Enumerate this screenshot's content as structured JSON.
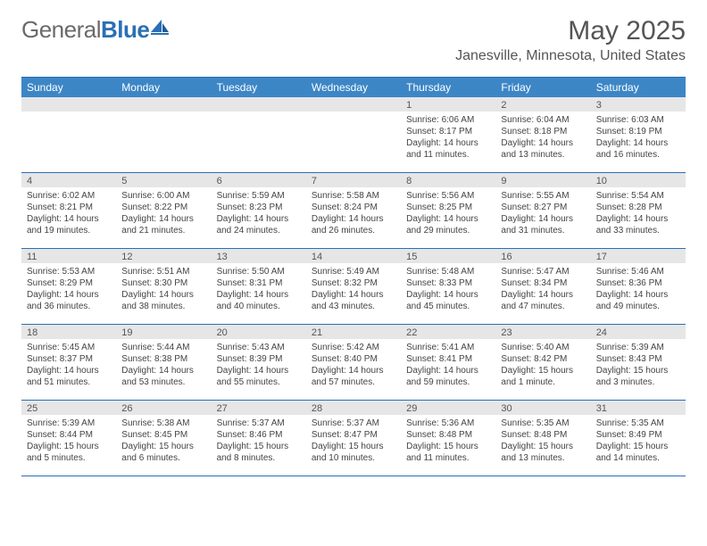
{
  "logo": {
    "general": "General",
    "blue": "Blue"
  },
  "title": "May 2025",
  "location": "Janesville, Minnesota, United States",
  "colors": {
    "header_bg": "#3d86c6",
    "border": "#2a6fb5",
    "daynum_bg": "#e6e6e6",
    "text": "#444444"
  },
  "days_of_week": [
    "Sunday",
    "Monday",
    "Tuesday",
    "Wednesday",
    "Thursday",
    "Friday",
    "Saturday"
  ],
  "weeks": [
    [
      {
        "n": "",
        "sr": "",
        "ss": "",
        "dl": ""
      },
      {
        "n": "",
        "sr": "",
        "ss": "",
        "dl": ""
      },
      {
        "n": "",
        "sr": "",
        "ss": "",
        "dl": ""
      },
      {
        "n": "",
        "sr": "",
        "ss": "",
        "dl": ""
      },
      {
        "n": "1",
        "sr": "Sunrise: 6:06 AM",
        "ss": "Sunset: 8:17 PM",
        "dl": "Daylight: 14 hours and 11 minutes."
      },
      {
        "n": "2",
        "sr": "Sunrise: 6:04 AM",
        "ss": "Sunset: 8:18 PM",
        "dl": "Daylight: 14 hours and 13 minutes."
      },
      {
        "n": "3",
        "sr": "Sunrise: 6:03 AM",
        "ss": "Sunset: 8:19 PM",
        "dl": "Daylight: 14 hours and 16 minutes."
      }
    ],
    [
      {
        "n": "4",
        "sr": "Sunrise: 6:02 AM",
        "ss": "Sunset: 8:21 PM",
        "dl": "Daylight: 14 hours and 19 minutes."
      },
      {
        "n": "5",
        "sr": "Sunrise: 6:00 AM",
        "ss": "Sunset: 8:22 PM",
        "dl": "Daylight: 14 hours and 21 minutes."
      },
      {
        "n": "6",
        "sr": "Sunrise: 5:59 AM",
        "ss": "Sunset: 8:23 PM",
        "dl": "Daylight: 14 hours and 24 minutes."
      },
      {
        "n": "7",
        "sr": "Sunrise: 5:58 AM",
        "ss": "Sunset: 8:24 PM",
        "dl": "Daylight: 14 hours and 26 minutes."
      },
      {
        "n": "8",
        "sr": "Sunrise: 5:56 AM",
        "ss": "Sunset: 8:25 PM",
        "dl": "Daylight: 14 hours and 29 minutes."
      },
      {
        "n": "9",
        "sr": "Sunrise: 5:55 AM",
        "ss": "Sunset: 8:27 PM",
        "dl": "Daylight: 14 hours and 31 minutes."
      },
      {
        "n": "10",
        "sr": "Sunrise: 5:54 AM",
        "ss": "Sunset: 8:28 PM",
        "dl": "Daylight: 14 hours and 33 minutes."
      }
    ],
    [
      {
        "n": "11",
        "sr": "Sunrise: 5:53 AM",
        "ss": "Sunset: 8:29 PM",
        "dl": "Daylight: 14 hours and 36 minutes."
      },
      {
        "n": "12",
        "sr": "Sunrise: 5:51 AM",
        "ss": "Sunset: 8:30 PM",
        "dl": "Daylight: 14 hours and 38 minutes."
      },
      {
        "n": "13",
        "sr": "Sunrise: 5:50 AM",
        "ss": "Sunset: 8:31 PM",
        "dl": "Daylight: 14 hours and 40 minutes."
      },
      {
        "n": "14",
        "sr": "Sunrise: 5:49 AM",
        "ss": "Sunset: 8:32 PM",
        "dl": "Daylight: 14 hours and 43 minutes."
      },
      {
        "n": "15",
        "sr": "Sunrise: 5:48 AM",
        "ss": "Sunset: 8:33 PM",
        "dl": "Daylight: 14 hours and 45 minutes."
      },
      {
        "n": "16",
        "sr": "Sunrise: 5:47 AM",
        "ss": "Sunset: 8:34 PM",
        "dl": "Daylight: 14 hours and 47 minutes."
      },
      {
        "n": "17",
        "sr": "Sunrise: 5:46 AM",
        "ss": "Sunset: 8:36 PM",
        "dl": "Daylight: 14 hours and 49 minutes."
      }
    ],
    [
      {
        "n": "18",
        "sr": "Sunrise: 5:45 AM",
        "ss": "Sunset: 8:37 PM",
        "dl": "Daylight: 14 hours and 51 minutes."
      },
      {
        "n": "19",
        "sr": "Sunrise: 5:44 AM",
        "ss": "Sunset: 8:38 PM",
        "dl": "Daylight: 14 hours and 53 minutes."
      },
      {
        "n": "20",
        "sr": "Sunrise: 5:43 AM",
        "ss": "Sunset: 8:39 PM",
        "dl": "Daylight: 14 hours and 55 minutes."
      },
      {
        "n": "21",
        "sr": "Sunrise: 5:42 AM",
        "ss": "Sunset: 8:40 PM",
        "dl": "Daylight: 14 hours and 57 minutes."
      },
      {
        "n": "22",
        "sr": "Sunrise: 5:41 AM",
        "ss": "Sunset: 8:41 PM",
        "dl": "Daylight: 14 hours and 59 minutes."
      },
      {
        "n": "23",
        "sr": "Sunrise: 5:40 AM",
        "ss": "Sunset: 8:42 PM",
        "dl": "Daylight: 15 hours and 1 minute."
      },
      {
        "n": "24",
        "sr": "Sunrise: 5:39 AM",
        "ss": "Sunset: 8:43 PM",
        "dl": "Daylight: 15 hours and 3 minutes."
      }
    ],
    [
      {
        "n": "25",
        "sr": "Sunrise: 5:39 AM",
        "ss": "Sunset: 8:44 PM",
        "dl": "Daylight: 15 hours and 5 minutes."
      },
      {
        "n": "26",
        "sr": "Sunrise: 5:38 AM",
        "ss": "Sunset: 8:45 PM",
        "dl": "Daylight: 15 hours and 6 minutes."
      },
      {
        "n": "27",
        "sr": "Sunrise: 5:37 AM",
        "ss": "Sunset: 8:46 PM",
        "dl": "Daylight: 15 hours and 8 minutes."
      },
      {
        "n": "28",
        "sr": "Sunrise: 5:37 AM",
        "ss": "Sunset: 8:47 PM",
        "dl": "Daylight: 15 hours and 10 minutes."
      },
      {
        "n": "29",
        "sr": "Sunrise: 5:36 AM",
        "ss": "Sunset: 8:48 PM",
        "dl": "Daylight: 15 hours and 11 minutes."
      },
      {
        "n": "30",
        "sr": "Sunrise: 5:35 AM",
        "ss": "Sunset: 8:48 PM",
        "dl": "Daylight: 15 hours and 13 minutes."
      },
      {
        "n": "31",
        "sr": "Sunrise: 5:35 AM",
        "ss": "Sunset: 8:49 PM",
        "dl": "Daylight: 15 hours and 14 minutes."
      }
    ]
  ]
}
